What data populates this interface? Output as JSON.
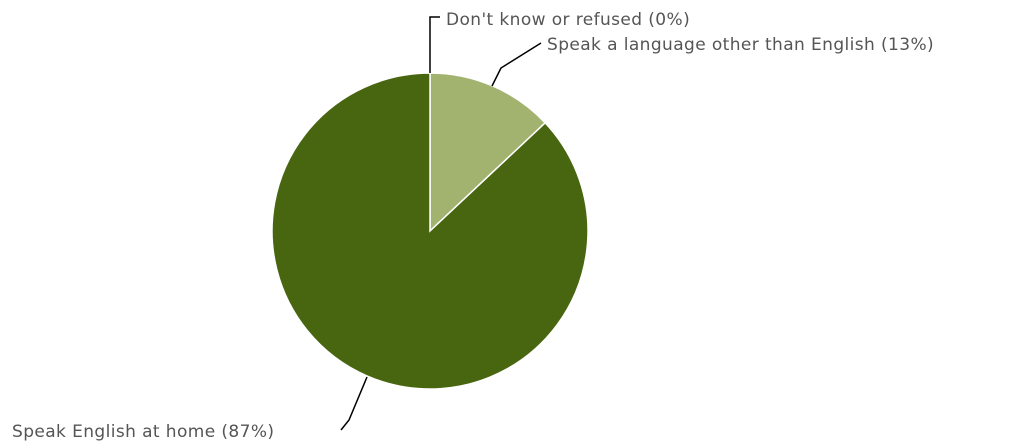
{
  "chart_data": {
    "type": "pie",
    "title": "",
    "slices": [
      {
        "label": "Speak a language other than English",
        "value": 13,
        "display": "Speak a language other than English (13%)",
        "color": "#a1b36f"
      },
      {
        "label": "Speak English at home",
        "value": 87,
        "display": "Speak English at home (87%)",
        "color": "#47660f"
      },
      {
        "label": "Don't know or refused",
        "value": 0,
        "display": "Don't know or refused (0%)",
        "color": "#6e8a2e"
      }
    ],
    "start_angle_deg": 0,
    "direction": "clockwise",
    "legend": "none",
    "labels": "outside-with-leader-lines"
  }
}
